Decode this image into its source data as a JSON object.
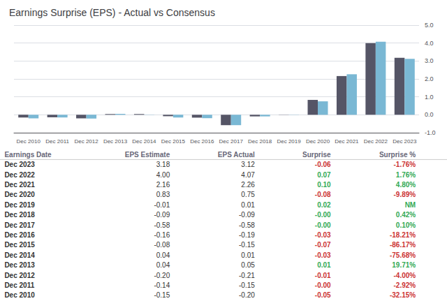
{
  "chart_data": {
    "type": "bar",
    "title": "Earnings Surprise (EPS) - Actual vs Consensus",
    "categories": [
      "Dec 2010",
      "Dec 2011",
      "Dec 2012",
      "Dec 2013",
      "Dec 2014",
      "Dec 2015",
      "Dec 2016",
      "Dec 2017",
      "Dec 2018",
      "Dec 2019",
      "Dec 2020",
      "Dec 2021",
      "Dec 2022",
      "Dec 2023"
    ],
    "series": [
      {
        "color": "#555566",
        "values": [
          -0.15,
          -0.14,
          -0.2,
          0.04,
          0.04,
          -0.08,
          -0.16,
          -0.58,
          -0.09,
          -0.01,
          0.83,
          2.16,
          4.0,
          3.18
        ]
      },
      {
        "color": "#7ab8d4",
        "values": [
          -0.2,
          -0.15,
          -0.21,
          0.05,
          0.01,
          -0.15,
          -0.19,
          -0.58,
          -0.09,
          0.01,
          0.75,
          2.26,
          4.07,
          3.12
        ]
      }
    ],
    "ylim": [
      -1.0,
      5.0
    ],
    "yticks": [
      {
        "value": -1.0,
        "label": "-1.0"
      },
      {
        "value": 0.0,
        "label": "0.0"
      },
      {
        "value": 1.0,
        "label": "1.0"
      },
      {
        "value": 2.0,
        "label": "2.0"
      },
      {
        "value": 3.0,
        "label": "3.0"
      },
      {
        "value": 4.0,
        "label": "4.0"
      },
      {
        "value": 5.0,
        "label": "5.0"
      }
    ],
    "grid": true,
    "table": {
      "header": [
        "Earnings Date",
        "EPS Estimate",
        "EPS Actual",
        "Surprise",
        "Surprise %"
      ],
      "rows": [
        {
          "cells": [
            "Dec 2023",
            "3.18",
            "3.12",
            "-0.06",
            "-1.76%"
          ],
          "color": "#cc3333"
        },
        {
          "cells": [
            "Dec 2022",
            "4.00",
            "4.07",
            "0.07",
            "1.76%"
          ],
          "color": "#33aa55"
        },
        {
          "cells": [
            "Dec 2021",
            "2.16",
            "2.26",
            "0.10",
            "4.80%"
          ],
          "color": "#33aa55"
        },
        {
          "cells": [
            "Dec 2020",
            "0.83",
            "0.75",
            "-0.08",
            "-9.89%"
          ],
          "color": "#cc3333"
        },
        {
          "cells": [
            "Dec 2019",
            "-0.01",
            "0.01",
            "0.02",
            "NM"
          ],
          "color": "#33aa55"
        },
        {
          "cells": [
            "Dec 2018",
            "-0.09",
            "-0.09",
            "-0.00",
            "0.42%"
          ],
          "color": "#33aa55"
        },
        {
          "cells": [
            "Dec 2017",
            "-0.58",
            "-0.58",
            "-0.00",
            "0.10%"
          ],
          "color": "#33aa55"
        },
        {
          "cells": [
            "Dec 2016",
            "-0.16",
            "-0.19",
            "-0.03",
            "-18.21%"
          ],
          "color": "#cc3333"
        },
        {
          "cells": [
            "Dec 2015",
            "-0.08",
            "-0.15",
            "-0.07",
            "-86.17%"
          ],
          "color": "#cc3333"
        },
        {
          "cells": [
            "Dec 2014",
            "0.04",
            "0.01",
            "-0.03",
            "-75.68%"
          ],
          "color": "#cc3333"
        },
        {
          "cells": [
            "Dec 2013",
            "0.04",
            "0.05",
            "0.01",
            "19.71%"
          ],
          "color": "#33aa55"
        },
        {
          "cells": [
            "Dec 2012",
            "-0.20",
            "-0.21",
            "-0.01",
            "-4.00%"
          ],
          "color": "#cc3333"
        },
        {
          "cells": [
            "Dec 2011",
            "-0.14",
            "-0.15",
            "-0.00",
            "-2.92%"
          ],
          "color": "#cc3333"
        },
        {
          "cells": [
            "Dec 2010",
            "-0.15",
            "-0.20",
            "-0.05",
            "-32.15%"
          ],
          "color": "#cc3333"
        }
      ]
    }
  }
}
